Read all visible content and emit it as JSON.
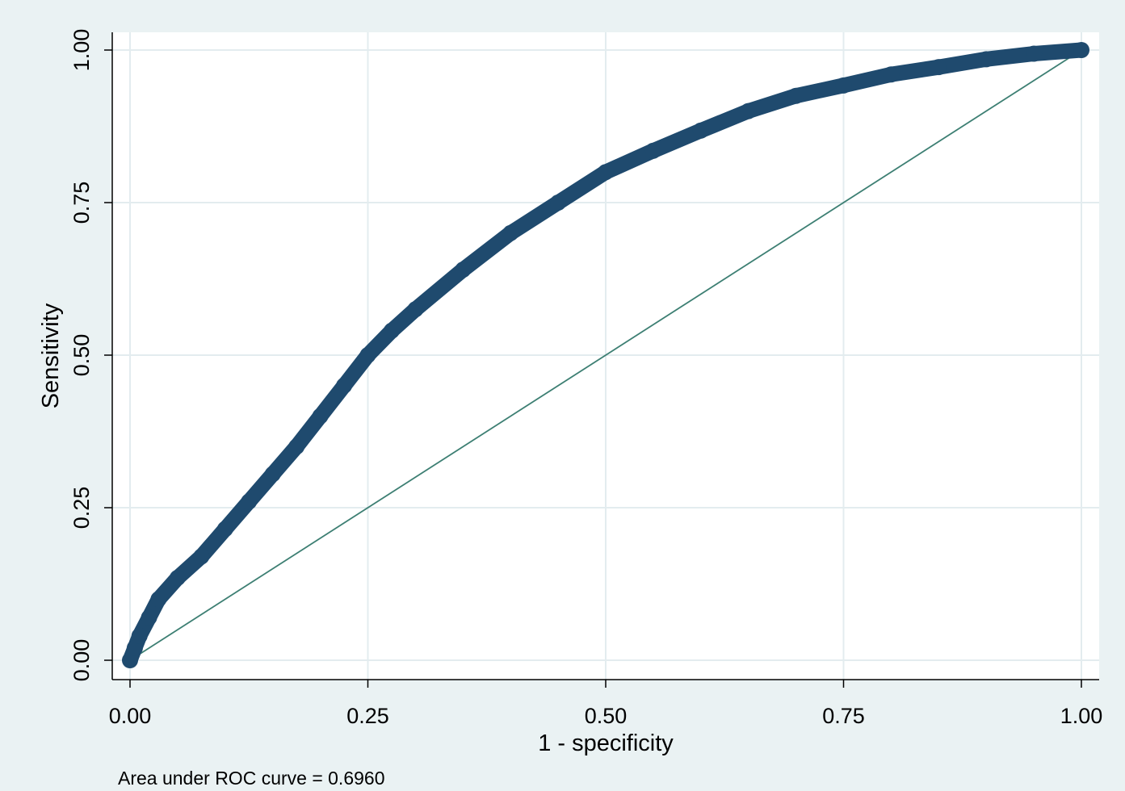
{
  "chart_data": {
    "type": "line",
    "xlabel": "1 - specificity",
    "ylabel": "Sensitivity",
    "xlim": [
      0,
      1
    ],
    "ylim": [
      0,
      1
    ],
    "x_ticks": [
      "0.00",
      "0.25",
      "0.50",
      "0.75",
      "1.00"
    ],
    "y_ticks": [
      "0.00",
      "0.25",
      "0.50",
      "0.75",
      "1.00"
    ],
    "grid": true,
    "note": "Area under ROC curve = 0.6960",
    "series": [
      {
        "kind": "roc-curve",
        "color": "#1f4a6e",
        "x": [
          0.0,
          0.005,
          0.01,
          0.02,
          0.03,
          0.05,
          0.075,
          0.1,
          0.125,
          0.15,
          0.175,
          0.2,
          0.225,
          0.25,
          0.275,
          0.3,
          0.35,
          0.4,
          0.45,
          0.5,
          0.55,
          0.6,
          0.65,
          0.7,
          0.75,
          0.8,
          0.85,
          0.9,
          0.95,
          1.0
        ],
        "y": [
          0.0,
          0.02,
          0.04,
          0.07,
          0.1,
          0.135,
          0.17,
          0.215,
          0.26,
          0.305,
          0.35,
          0.4,
          0.45,
          0.5,
          0.54,
          0.575,
          0.64,
          0.7,
          0.75,
          0.8,
          0.835,
          0.868,
          0.9,
          0.925,
          0.942,
          0.96,
          0.972,
          0.985,
          0.994,
          1.0
        ]
      },
      {
        "kind": "reference-line",
        "color": "#3d7f73",
        "x": [
          0,
          1
        ],
        "y": [
          0,
          1
        ]
      }
    ]
  }
}
